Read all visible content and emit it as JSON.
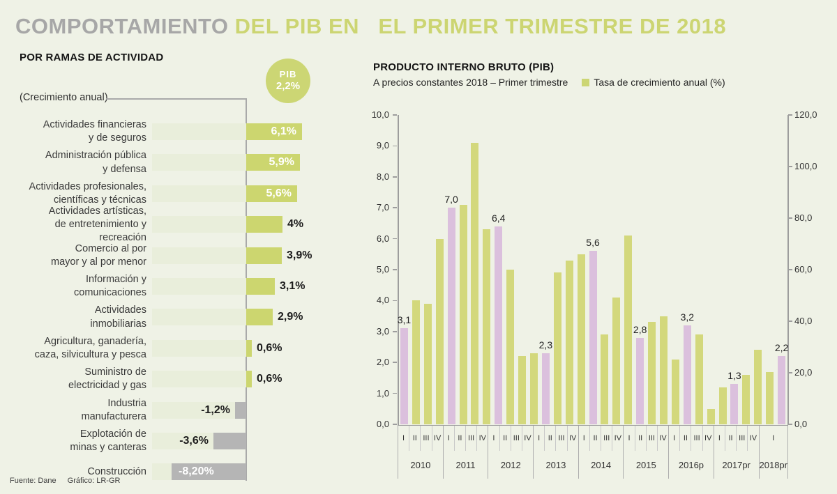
{
  "header": {
    "title_part1": "COMPORTAMIENTO ",
    "title_part2": "DEL PIB EN   EL PRIMER TRIMESTRE DE 2018",
    "title_color_gray": "#a7a7a7",
    "title_color_green": "#ccd572"
  },
  "footer": {
    "source": "Fuente: Dane",
    "credit": "Gráfico: LR-GR"
  },
  "colors": {
    "background": "#eff2e6",
    "green_bar": "#ccd66f",
    "green_bar_right_chart": "#d3d87c",
    "pink_bar": "#dbc0dd",
    "gray_bar": "#b5b5b5",
    "pale_track": "#e9eedb",
    "axis_gray": "#9d9d9d"
  },
  "chart_data": [
    {
      "type": "bar",
      "orientation": "horizontal",
      "title": "POR RAMAS DE ACTIVIDAD",
      "note": "(Crecimiento anual)",
      "unit": "% crecimiento anual",
      "highlight": {
        "label": "PIB",
        "value": "2,2%"
      },
      "rows": [
        {
          "label_lines": [
            "Actividades financieras",
            "y de seguros"
          ],
          "value": 6.1,
          "value_label": "6,1%",
          "label_style": "inside"
        },
        {
          "label_lines": [
            "Administración pública",
            "y defensa"
          ],
          "value": 5.9,
          "value_label": "5,9%",
          "label_style": "inside"
        },
        {
          "label_lines": [
            "Actividades profesionales,",
            "científicas y técnicas"
          ],
          "value": 5.6,
          "value_label": "5,6%",
          "label_style": "inside"
        },
        {
          "label_lines": [
            "Actividades artísticas,",
            "de entretenimiento y recreación"
          ],
          "value": 4,
          "value_label": "4%",
          "label_style": "outside"
        },
        {
          "label_lines": [
            "Comercio al por",
            "mayor y al por menor"
          ],
          "value": 3.9,
          "value_label": "3,9%",
          "label_style": "outside"
        },
        {
          "label_lines": [
            "Información y",
            "comunicaciones"
          ],
          "value": 3.1,
          "value_label": "3,1%",
          "label_style": "outside"
        },
        {
          "label_lines": [
            "Actividades",
            "inmobiliarias"
          ],
          "value": 2.9,
          "value_label": "2,9%",
          "label_style": "outside"
        },
        {
          "label_lines": [
            "Agricultura, ganadería,",
            "caza, silvicultura y pesca"
          ],
          "value": 0.6,
          "value_label": "0,6%",
          "label_style": "outside"
        },
        {
          "label_lines": [
            "Suministro de",
            "electricidad y gas"
          ],
          "value": 0.6,
          "value_label": "0,6%",
          "label_style": "outside"
        },
        {
          "label_lines": [
            "Industria",
            "manufacturera"
          ],
          "value": -1.2,
          "value_label": "-1,2%",
          "label_style": "outside"
        },
        {
          "label_lines": [
            "Explotación de",
            "minas y canteras"
          ],
          "value": -3.6,
          "value_label": "-3,6%",
          "label_style": "outside"
        },
        {
          "label_lines": [
            "Construcción"
          ],
          "value": -8.2,
          "value_label": "-8,20%",
          "label_style": "inside"
        }
      ]
    },
    {
      "type": "bar",
      "title": "PRODUCTO INTERNO BRUTO (PIB)",
      "subtitle": "A precios constantes 2018 – Primer trimestre",
      "legend": "Tasa de crecimiento anual (%)",
      "legend_position": "top",
      "grid": false,
      "ylim_left": [
        0,
        10
      ],
      "ytick_step_left": 1,
      "ylim_right": [
        0,
        120
      ],
      "ytick_step_right": 20,
      "quarter_labels": [
        "I",
        "II",
        "III",
        "IV"
      ],
      "groups": [
        {
          "year": "2010",
          "values": [
            3.1,
            4.0,
            3.9,
            6.0
          ],
          "q1_label": "3,1"
        },
        {
          "year": "2011",
          "values": [
            7.0,
            7.1,
            9.1,
            6.3
          ],
          "q1_label": "7,0"
        },
        {
          "year": "2012",
          "values": [
            6.4,
            5.0,
            2.2,
            2.3
          ],
          "q1_label": "6,4"
        },
        {
          "year": "2013",
          "values": [
            2.3,
            4.9,
            5.3,
            5.5
          ],
          "q1_label": "2,3"
        },
        {
          "year": "2014",
          "values": [
            5.6,
            2.9,
            4.1,
            6.1
          ],
          "q1_label": "5,6"
        },
        {
          "year": "2015",
          "values": [
            2.8,
            3.3,
            3.5,
            2.1
          ],
          "q1_label": "2,8"
        },
        {
          "year": "2016p",
          "values": [
            3.2,
            2.9,
            0.5,
            1.2
          ],
          "q1_label": "3,2"
        },
        {
          "year": "2017pr",
          "values": [
            1.3,
            1.6,
            2.4,
            1.7
          ],
          "q1_label": "1,3"
        },
        {
          "year": "2018pr",
          "values": [
            2.2
          ],
          "q1_label": "2,2"
        }
      ]
    }
  ]
}
